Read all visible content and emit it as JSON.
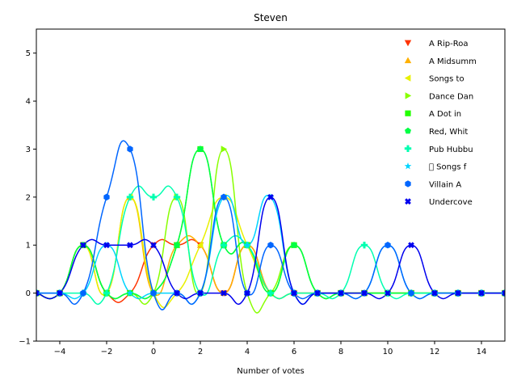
{
  "chart_data": {
    "type": "line",
    "title": "Steven",
    "xlabel": "Number of votes",
    "ylabel": "",
    "xlim": [
      -5,
      15
    ],
    "ylim": [
      -1,
      5.5
    ],
    "xticks": [
      -4,
      -2,
      0,
      2,
      4,
      6,
      8,
      10,
      12,
      14
    ],
    "yticks": [
      -1,
      0,
      1,
      2,
      3,
      4,
      5
    ],
    "grid": false,
    "legend_position": "top-right",
    "x": [
      -5,
      -4,
      -3,
      -2,
      -1,
      0,
      1,
      2,
      3,
      4,
      5,
      6,
      7,
      8,
      9,
      10,
      11,
      12,
      13,
      14,
      15
    ],
    "series": [
      {
        "name": "A Rip-Roa",
        "color": "#ff3300",
        "marker": "triangle-down",
        "values": [
          0,
          0,
          1,
          0,
          0,
          1,
          1,
          1,
          0,
          1,
          0,
          0,
          0,
          0,
          0,
          0,
          0,
          0,
          0,
          0,
          0
        ]
      },
      {
        "name": "A Midsumm",
        "color": "#ffb000",
        "marker": "triangle-up",
        "values": [
          0,
          0,
          1,
          0,
          2,
          0,
          1,
          1,
          0,
          1,
          0,
          0,
          0,
          0,
          0,
          0,
          0,
          0,
          0,
          0,
          0
        ]
      },
      {
        "name": "Songs to",
        "color": "#e8f000",
        "marker": "triangle-left",
        "values": [
          0,
          0,
          1,
          0,
          2,
          0,
          0,
          1,
          2,
          1,
          0,
          0,
          0,
          0,
          0,
          0,
          0,
          0,
          0,
          0,
          0
        ]
      },
      {
        "name": "Dance Dan",
        "color": "#88ff00",
        "marker": "triangle-right",
        "values": [
          0,
          0,
          1,
          0,
          0,
          0,
          2,
          0,
          3,
          0,
          0,
          1,
          0,
          0,
          0,
          0,
          0,
          0,
          0,
          0,
          0
        ]
      },
      {
        "name": "A Dot in",
        "color": "#22ff00",
        "marker": "square",
        "values": [
          0,
          0,
          1,
          0,
          0,
          0,
          1,
          3,
          1,
          1,
          0,
          1,
          0,
          0,
          0,
          0,
          0,
          0,
          0,
          0,
          0
        ]
      },
      {
        "name": "Red, Whit",
        "color": "#00ff44",
        "marker": "pentagon",
        "values": [
          0,
          0,
          1,
          0,
          0,
          0,
          1,
          3,
          1,
          1,
          0,
          1,
          0,
          0,
          0,
          0,
          0,
          0,
          0,
          0,
          0
        ]
      },
      {
        "name": "Pub Hubbu",
        "color": "#00ffb0",
        "marker": "plus",
        "values": [
          0,
          0,
          0,
          0,
          2,
          2,
          2,
          0,
          1,
          1,
          0,
          0,
          0,
          0,
          1,
          0,
          0,
          0,
          0,
          0,
          0
        ]
      },
      {
        "name": "\u0000 Songs f",
        "color": "#00d4ff",
        "marker": "star",
        "values": [
          0,
          0,
          0,
          1,
          0,
          0,
          0,
          0,
          2,
          1,
          2,
          0,
          0,
          0,
          0,
          1,
          0,
          0,
          0,
          0,
          0
        ]
      },
      {
        "name": "Villain A",
        "color": "#0066ff",
        "marker": "hexagon",
        "values": [
          0,
          0,
          0,
          2,
          3,
          0,
          0,
          0,
          2,
          0,
          1,
          0,
          0,
          0,
          0,
          1,
          0,
          0,
          0,
          0,
          0
        ]
      },
      {
        "name": "Undercove",
        "color": "#0000ee",
        "marker": "x",
        "values": [
          0,
          0,
          1,
          1,
          1,
          1,
          0,
          0,
          0,
          0,
          2,
          0,
          0,
          0,
          0,
          0,
          1,
          0,
          0,
          0,
          0
        ]
      }
    ]
  }
}
